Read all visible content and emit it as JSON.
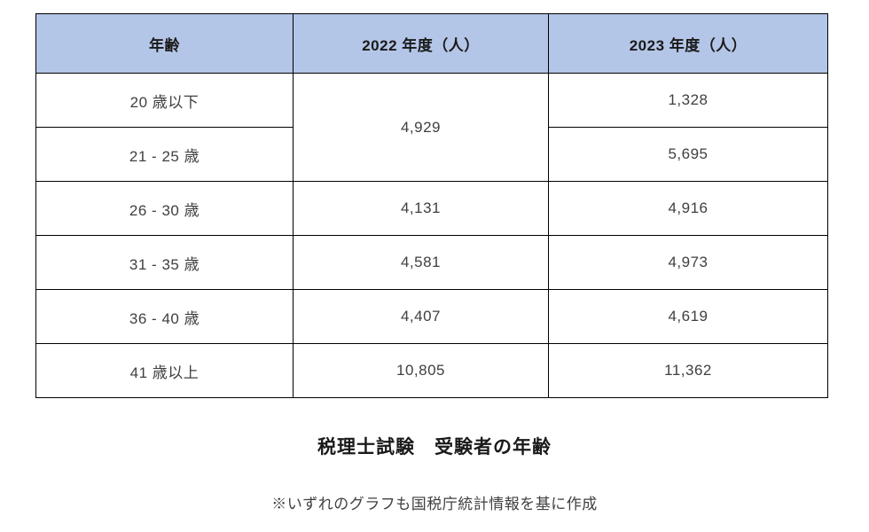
{
  "colors": {
    "header_bg": "#b4c6e7",
    "border": "#000000",
    "header_text": "#1a1a1a",
    "cell_text": "#404040"
  },
  "table": {
    "headers": {
      "age": "年齢",
      "y2022": "2022 年度（人）",
      "y2023": "2023 年度（人）"
    },
    "merged_2022": "4,929",
    "rows": [
      {
        "age": "20 歳以下",
        "y2023": "1,328"
      },
      {
        "age": "21 - 25 歳",
        "y2023": "5,695"
      },
      {
        "age": "26 - 30 歳",
        "y2022": "4,131",
        "y2023": "4,916"
      },
      {
        "age": "31 - 35 歳",
        "y2022": "4,581",
        "y2023": "4,973"
      },
      {
        "age": "36 - 40 歳",
        "y2022": "4,407",
        "y2023": "4,619"
      },
      {
        "age": "41 歳以上",
        "y2022": "10,805",
        "y2023": "11,362"
      }
    ]
  },
  "caption": {
    "title": "税理士試験　受験者の年齢",
    "footnote": "※いずれのグラフも国税庁統計情報を基に作成"
  },
  "chart_data": {
    "type": "table",
    "title": "税理士試験　受験者の年齢",
    "source_note": "※いずれのグラフも国税庁統計情報を基に作成",
    "columns": [
      "年齢",
      "2022 年度（人）",
      "2023 年度（人）"
    ],
    "categories": [
      "20 歳以下",
      "21 - 25 歳",
      "26 - 30 歳",
      "31 - 35 歳",
      "36 - 40 歳",
      "41 歳以上"
    ],
    "series": [
      {
        "name": "2022 年度（人）",
        "values": [
          4929,
          null,
          4131,
          4581,
          4407,
          10805
        ],
        "merged_note": "4,929 is a single merged cell spanning 20 歳以下 and 21 - 25 歳"
      },
      {
        "name": "2023 年度（人）",
        "values": [
          1328,
          5695,
          4916,
          4973,
          4619,
          11362
        ]
      }
    ],
    "layout": {
      "header_fill": "#b4c6e7",
      "grid": "all-borders",
      "title_position": "below-table"
    }
  }
}
